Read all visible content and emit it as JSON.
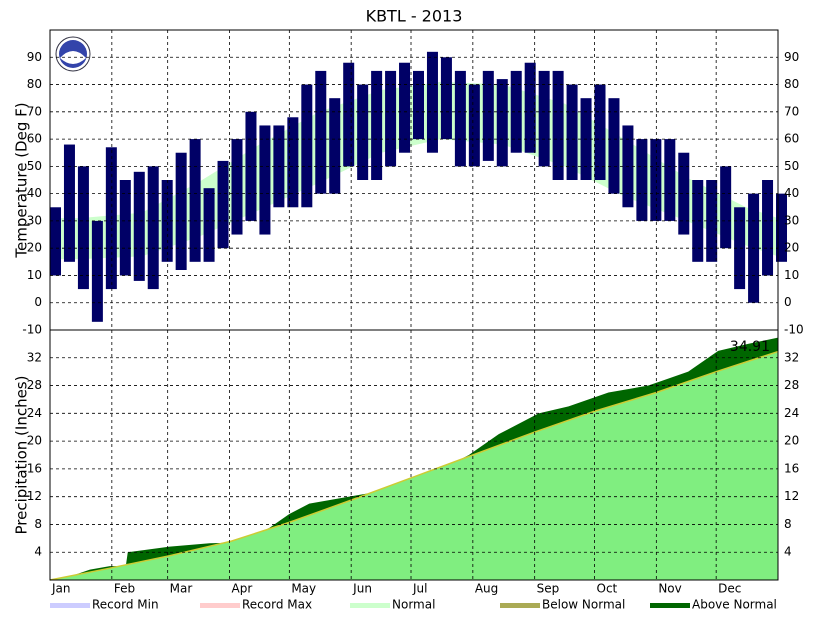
{
  "chart_data": [
    {
      "type": "range-bar",
      "title": "KBTL - 2013",
      "y_label": "Temperature (Deg F)",
      "xlim": [
        0,
        365
      ],
      "xticks": [
        {
          "value": 0,
          "label": "Jan"
        },
        {
          "value": 31,
          "label": "Feb"
        },
        {
          "value": 59,
          "label": "Mar"
        },
        {
          "value": 90,
          "label": "Apr"
        },
        {
          "value": 120,
          "label": "May"
        },
        {
          "value": 151,
          "label": "Jun"
        },
        {
          "value": 181,
          "label": "Jul"
        },
        {
          "value": 212,
          "label": "Aug"
        },
        {
          "value": 243,
          "label": "Sep"
        },
        {
          "value": 273,
          "label": "Oct"
        },
        {
          "value": 304,
          "label": "Nov"
        },
        {
          "value": 334,
          "label": "Dec"
        }
      ],
      "ylim": [
        -10,
        100
      ],
      "yticks": [
        -10,
        0,
        10,
        20,
        30,
        40,
        50,
        60,
        70,
        80,
        90
      ],
      "grid": true,
      "series": [
        {
          "name": "Normal",
          "color": "#ccffcc",
          "x": [
            0,
            15,
            46,
            74,
            105,
            135,
            166,
            196,
            227,
            258,
            288,
            319,
            349,
            365
          ],
          "low": [
            16,
            16,
            17,
            24,
            34,
            44,
            55,
            60,
            58,
            50,
            39,
            30,
            21,
            17
          ],
          "high": [
            31,
            31,
            33,
            44,
            58,
            70,
            78,
            81,
            80,
            73,
            60,
            46,
            35,
            31
          ]
        },
        {
          "name": "Observed",
          "color": "#000066",
          "x": [
            0,
            7,
            14,
            21,
            28,
            35,
            42,
            49,
            56,
            63,
            70,
            77,
            84,
            91,
            98,
            105,
            112,
            119,
            126,
            133,
            140,
            147,
            154,
            161,
            168,
            175,
            182,
            189,
            196,
            203,
            210,
            217,
            224,
            231,
            238,
            245,
            252,
            259,
            266,
            273,
            280,
            287,
            294,
            301,
            308,
            315,
            322,
            329,
            336,
            343,
            350,
            357,
            364
          ],
          "low": [
            10,
            15,
            5,
            -7,
            5,
            10,
            8,
            5,
            15,
            12,
            15,
            15,
            20,
            25,
            30,
            25,
            35,
            35,
            35,
            40,
            40,
            50,
            45,
            45,
            50,
            55,
            60,
            55,
            60,
            50,
            50,
            52,
            50,
            55,
            55,
            50,
            45,
            45,
            45,
            45,
            40,
            35,
            30,
            30,
            30,
            25,
            15,
            15,
            20,
            5,
            0,
            10,
            15
          ],
          "high": [
            35,
            58,
            50,
            30,
            57,
            45,
            48,
            50,
            45,
            55,
            60,
            42,
            52,
            60,
            70,
            65,
            65,
            68,
            80,
            85,
            75,
            88,
            80,
            85,
            85,
            88,
            85,
            92,
            90,
            85,
            80,
            85,
            82,
            85,
            88,
            85,
            85,
            80,
            75,
            80,
            75,
            65,
            60,
            60,
            60,
            55,
            45,
            45,
            50,
            35,
            40,
            45,
            40
          ]
        }
      ],
      "legend": [
        {
          "name": "Record Min",
          "color": "#ccccff"
        },
        {
          "name": "Record Max",
          "color": "#ffcccc"
        },
        {
          "name": "Normal",
          "color": "#ccffcc"
        },
        {
          "name": "Below Normal",
          "color": "#aaaa55"
        },
        {
          "name": "Above Normal",
          "color": "#006600"
        }
      ]
    },
    {
      "type": "area",
      "y_label": "Precipitation (Inches)",
      "ylim": [
        0,
        36
      ],
      "yticks": [
        4,
        8,
        12,
        16,
        20,
        24,
        28,
        32
      ],
      "grid": true,
      "annotation": "34.91",
      "series": [
        {
          "name": "Observed",
          "color": "#006600",
          "x": [
            0,
            10,
            20,
            30,
            38,
            39,
            60,
            80,
            95,
            110,
            120,
            130,
            150,
            170,
            185,
            200,
            210,
            225,
            245,
            260,
            280,
            300,
            320,
            335,
            350,
            365
          ],
          "values": [
            0,
            0.5,
            1.5,
            2,
            2,
            4,
            4.8,
            5.3,
            5.4,
            7.5,
            9.5,
            11,
            12,
            13,
            15,
            16.5,
            18,
            21,
            24,
            25,
            27,
            28,
            30,
            33,
            34,
            34.91
          ]
        },
        {
          "name": "Normal",
          "color": "#80ee80",
          "line_color": "#cccc33",
          "x": [
            0,
            30,
            60,
            91,
            120,
            151,
            181,
            212,
            243,
            273,
            304,
            334,
            365
          ],
          "values": [
            0,
            1.7,
            3.5,
            5.6,
            8.3,
            11.5,
            14.7,
            18,
            21.3,
            24.3,
            27,
            30,
            32.9
          ]
        }
      ]
    }
  ]
}
